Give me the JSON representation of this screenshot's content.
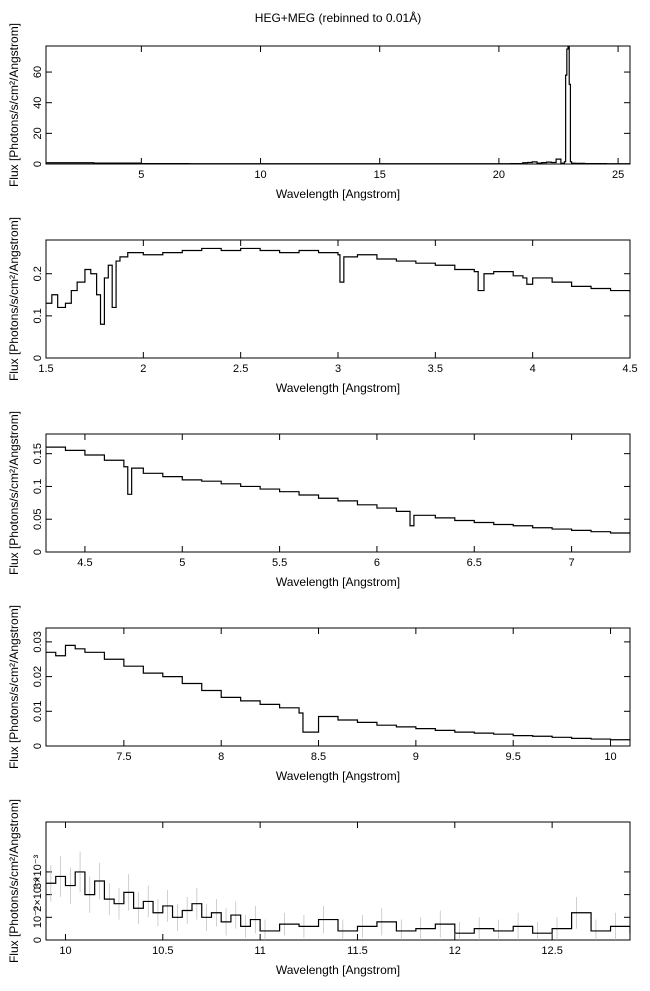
{
  "figure": {
    "title": "HEG+MEG (rebinned to 0.01Å)"
  },
  "chart_data": [
    {
      "type": "line",
      "xlabel": "Wavelength [Angstrom]",
      "ylabel": "Flux [Photons/s/cm²/Angstrom]",
      "xlim": [
        1.0,
        25.5
      ],
      "ylim": [
        0,
        77
      ],
      "xticks": [
        5,
        10,
        15,
        20,
        25
      ],
      "xtick_labels": [
        "5",
        "10",
        "15",
        "20",
        "25"
      ],
      "yticks": [
        0,
        20,
        40,
        60
      ],
      "ytick_labels": [
        "0",
        "20",
        "40",
        "60"
      ],
      "grid": false,
      "step": true,
      "x": [
        1.0,
        3.0,
        5.0,
        7.0,
        9.0,
        11.0,
        13.0,
        15.0,
        17.0,
        19.0,
        20.5,
        21.0,
        21.2,
        21.4,
        21.6,
        21.8,
        22.0,
        22.2,
        22.4,
        22.6,
        22.75,
        22.8,
        22.85,
        22.9,
        22.95,
        23.0,
        23.05,
        23.2,
        23.6,
        24.5,
        25.5
      ],
      "y": [
        0.8,
        0.6,
        0.3,
        0.2,
        0.2,
        0.2,
        0.2,
        0.2,
        0.2,
        0.2,
        0.3,
        0.8,
        1.0,
        1.4,
        0.6,
        0.9,
        1.2,
        1.0,
        3.2,
        0.5,
        1.5,
        58,
        75,
        77,
        52,
        1.5,
        0.5,
        0.4,
        0.3,
        0.2,
        0.2
      ]
    },
    {
      "type": "line",
      "xlabel": "Wavelength [Angstrom]",
      "ylabel": "Flux [Photons/s/cm²/Angstrom]",
      "xlim": [
        1.5,
        4.5
      ],
      "ylim": [
        0,
        0.28
      ],
      "xticks": [
        1.5,
        2,
        2.5,
        3,
        3.5,
        4,
        4.5
      ],
      "xtick_labels": [
        "1.5",
        "2",
        "2.5",
        "3",
        "3.5",
        "4",
        "4.5"
      ],
      "yticks": [
        0,
        0.1,
        0.2
      ],
      "ytick_labels": [
        "0",
        "0.1",
        "0.2"
      ],
      "grid": false,
      "step": true,
      "x": [
        1.5,
        1.53,
        1.56,
        1.6,
        1.63,
        1.66,
        1.7,
        1.73,
        1.76,
        1.78,
        1.8,
        1.82,
        1.84,
        1.86,
        1.88,
        1.92,
        2.0,
        2.1,
        2.2,
        2.3,
        2.4,
        2.5,
        2.6,
        2.7,
        2.8,
        2.9,
        3.0,
        3.01,
        3.03,
        3.1,
        3.2,
        3.3,
        3.4,
        3.5,
        3.6,
        3.7,
        3.72,
        3.75,
        3.8,
        3.9,
        3.95,
        3.97,
        4.0,
        4.1,
        4.2,
        4.3,
        4.4,
        4.5
      ],
      "y": [
        0.13,
        0.15,
        0.12,
        0.13,
        0.16,
        0.18,
        0.21,
        0.2,
        0.15,
        0.08,
        0.19,
        0.22,
        0.12,
        0.23,
        0.24,
        0.25,
        0.245,
        0.25,
        0.255,
        0.26,
        0.255,
        0.26,
        0.255,
        0.25,
        0.255,
        0.25,
        0.245,
        0.18,
        0.24,
        0.245,
        0.235,
        0.23,
        0.225,
        0.22,
        0.21,
        0.205,
        0.16,
        0.2,
        0.205,
        0.195,
        0.19,
        0.175,
        0.19,
        0.18,
        0.17,
        0.165,
        0.16,
        0.155
      ]
    },
    {
      "type": "line",
      "xlabel": "Wavelength [Angstrom]",
      "ylabel": "Flux [Photons/s/cm²/Angstrom]",
      "xlim": [
        4.3,
        7.3
      ],
      "ylim": [
        0,
        0.18
      ],
      "xticks": [
        4.5,
        5,
        5.5,
        6,
        6.5,
        7
      ],
      "xtick_labels": [
        "4.5",
        "5",
        "5.5",
        "6",
        "6.5",
        "7"
      ],
      "yticks": [
        0,
        0.05,
        0.1,
        0.15
      ],
      "ytick_labels": [
        "0",
        "0.05",
        "0.1",
        "0.15"
      ],
      "grid": false,
      "step": true,
      "x": [
        4.3,
        4.4,
        4.5,
        4.6,
        4.7,
        4.72,
        4.74,
        4.8,
        4.9,
        5.0,
        5.1,
        5.2,
        5.3,
        5.4,
        5.5,
        5.6,
        5.7,
        5.8,
        5.9,
        6.0,
        6.1,
        6.17,
        6.19,
        6.3,
        6.4,
        6.5,
        6.6,
        6.7,
        6.8,
        6.9,
        7.0,
        7.1,
        7.2,
        7.3
      ],
      "y": [
        0.16,
        0.155,
        0.148,
        0.14,
        0.13,
        0.088,
        0.128,
        0.12,
        0.115,
        0.11,
        0.108,
        0.104,
        0.1,
        0.096,
        0.092,
        0.087,
        0.082,
        0.078,
        0.072,
        0.067,
        0.062,
        0.04,
        0.056,
        0.052,
        0.048,
        0.045,
        0.042,
        0.04,
        0.037,
        0.035,
        0.033,
        0.031,
        0.029,
        0.027
      ]
    },
    {
      "type": "line",
      "xlabel": "Wavelength [Angstrom]",
      "ylabel": "Flux [Photons/s/cm²/Angstrom]",
      "xlim": [
        7.1,
        10.1
      ],
      "ylim": [
        0,
        0.034
      ],
      "xticks": [
        7.5,
        8,
        8.5,
        9,
        9.5,
        10
      ],
      "xtick_labels": [
        "7.5",
        "8",
        "8.5",
        "9",
        "9.5",
        "10"
      ],
      "yticks": [
        0,
        0.01,
        0.02,
        0.03
      ],
      "ytick_labels": [
        "0",
        "0.01",
        "0.02",
        "0.03"
      ],
      "grid": false,
      "step": true,
      "x": [
        7.1,
        7.15,
        7.2,
        7.25,
        7.3,
        7.4,
        7.5,
        7.6,
        7.7,
        7.8,
        7.9,
        8.0,
        8.1,
        8.2,
        8.3,
        8.4,
        8.42,
        8.5,
        8.6,
        8.7,
        8.8,
        8.9,
        9.0,
        9.1,
        9.2,
        9.3,
        9.4,
        9.5,
        9.6,
        9.7,
        9.8,
        9.9,
        10.0,
        10.1
      ],
      "y": [
        0.027,
        0.026,
        0.029,
        0.028,
        0.027,
        0.025,
        0.023,
        0.021,
        0.02,
        0.018,
        0.016,
        0.014,
        0.013,
        0.012,
        0.011,
        0.0095,
        0.004,
        0.0085,
        0.0075,
        0.0068,
        0.006,
        0.0055,
        0.005,
        0.0045,
        0.004,
        0.0037,
        0.0034,
        0.003,
        0.0028,
        0.0025,
        0.0022,
        0.002,
        0.0018,
        0.0015
      ]
    },
    {
      "type": "line",
      "xlabel": "Wavelength [Angstrom]",
      "ylabel": "Flux [Photons/s/cm²/Angstrom]",
      "xlim": [
        9.9,
        12.9
      ],
      "ylim": [
        0,
        0.0052
      ],
      "xticks": [
        10,
        10.5,
        11,
        11.5,
        12,
        12.5
      ],
      "xtick_labels": [
        "10",
        "10.5",
        "11",
        "11.5",
        "12",
        "12.5"
      ],
      "yticks": [
        0,
        0.001,
        0.002,
        0.003
      ],
      "ytick_labels": [
        "0",
        "10⁻³",
        "2×10⁻³",
        "3×10⁻³"
      ],
      "grid": false,
      "step": true,
      "error_bars": true,
      "x": [
        9.9,
        9.95,
        10.0,
        10.05,
        10.1,
        10.15,
        10.2,
        10.25,
        10.3,
        10.35,
        10.4,
        10.45,
        10.5,
        10.55,
        10.6,
        10.65,
        10.7,
        10.75,
        10.8,
        10.85,
        10.9,
        10.95,
        11.0,
        11.1,
        11.2,
        11.3,
        11.4,
        11.5,
        11.6,
        11.7,
        11.8,
        11.9,
        12.0,
        12.1,
        12.2,
        12.3,
        12.4,
        12.5,
        12.6,
        12.7,
        12.8,
        12.9
      ],
      "y": [
        0.0025,
        0.0028,
        0.0024,
        0.003,
        0.002,
        0.0026,
        0.0018,
        0.0016,
        0.0021,
        0.0014,
        0.0017,
        0.0012,
        0.0015,
        0.001,
        0.0013,
        0.0016,
        0.001,
        0.0012,
        0.0008,
        0.0011,
        0.0006,
        0.0009,
        0.0004,
        0.0007,
        0.0006,
        0.0009,
        0.0004,
        0.0006,
        0.0008,
        0.0004,
        0.0005,
        0.0007,
        0.0003,
        0.0005,
        0.0004,
        0.0006,
        0.0003,
        0.0005,
        0.0012,
        0.0004,
        0.0006,
        0.0003
      ],
      "err": [
        0.0008,
        0.0009,
        0.0008,
        0.0009,
        0.0008,
        0.0008,
        0.0007,
        0.0007,
        0.0008,
        0.0007,
        0.0007,
        0.0006,
        0.0007,
        0.0006,
        0.0006,
        0.0007,
        0.0006,
        0.0006,
        0.0006,
        0.0006,
        0.0005,
        0.0006,
        0.0005,
        0.0005,
        0.0005,
        0.0006,
        0.0005,
        0.0005,
        0.0006,
        0.0005,
        0.0005,
        0.0006,
        0.0005,
        0.0005,
        0.0005,
        0.0006,
        0.0005,
        0.0005,
        0.0007,
        0.0005,
        0.0006,
        0.0005
      ]
    }
  ]
}
